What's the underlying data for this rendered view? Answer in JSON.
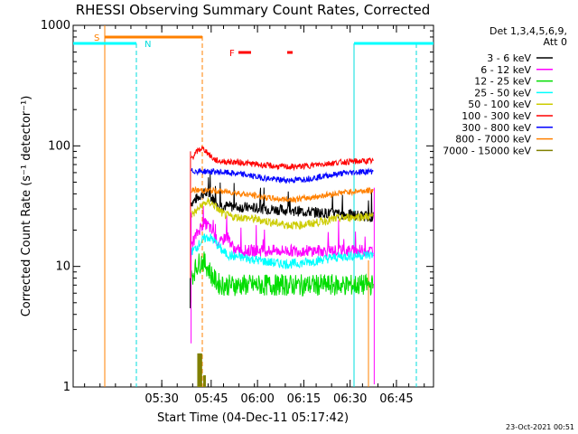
{
  "chart_data": {
    "type": "line",
    "title": "RHESSI Observing Summary Count Rates, Corrected",
    "ylabel": "Corrected Count Rate (s⁻¹ detector⁻¹)",
    "xlabel": "Start Time (04-Dec-11 05:17:42)",
    "footer": "23-Oct-2021 00:51",
    "y_scale": "log",
    "ylim": [
      1,
      1000
    ],
    "y_ticks": [
      1,
      10,
      100,
      1000
    ],
    "y_tick_labels": [
      "1",
      "10",
      "100",
      "1000"
    ],
    "x_ticks": [
      -1,
      15,
      30,
      45,
      60,
      75
    ],
    "x_tick_labels": [
      "05:30",
      "05:45",
      "06:00",
      "06:15",
      "06:30",
      "06:45"
    ],
    "xlim": [
      -29.7,
      87.0
    ],
    "grid": false,
    "legend_position": "right",
    "legend_header": [
      "Det 1,3,4,5,6,9,",
      "Att 0"
    ],
    "series": [
      {
        "name": "3 - 6 keV",
        "color": "#000000"
      },
      {
        "name": "6 - 12 keV",
        "color": "#ff00ff"
      },
      {
        "name": "12 - 25 keV",
        "color": "#00dd00"
      },
      {
        "name": "25 - 50 keV",
        "color": "#00ffff"
      },
      {
        "name": "50 - 100 keV",
        "color": "#cccc00"
      },
      {
        "name": "100 - 300 keV",
        "color": "#ff0000"
      },
      {
        "name": "300 - 800 keV",
        "color": "#0000ff"
      },
      {
        "name": "800 - 7000 keV",
        "color": "#ff8000"
      },
      {
        "name": "7000 - 15000 keV",
        "color": "#808000"
      }
    ],
    "annotations": [
      {
        "label": "S",
        "color": "#ff8000"
      },
      {
        "label": "N",
        "color": "#00dddd"
      },
      {
        "label": "F",
        "color": "#ff0000"
      }
    ]
  }
}
